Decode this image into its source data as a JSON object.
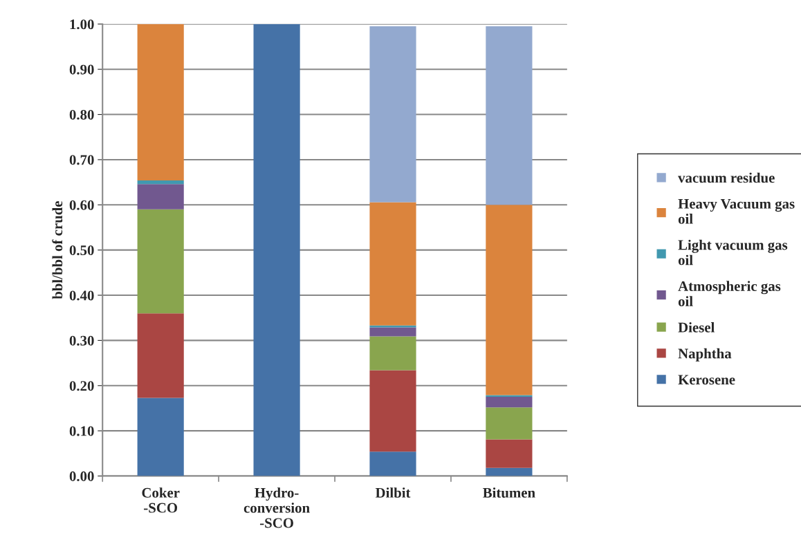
{
  "chart_data": {
    "type": "bar",
    "stacked": true,
    "ylabel": "bbl/bbl of crude",
    "categories": [
      "Coker\n-SCO",
      "Hydro-\nconversion\n-SCO",
      "Dilbit",
      "Bitumen"
    ],
    "series": [
      {
        "name": "Kerosene",
        "color": "#4572a7",
        "values": [
          0.173,
          1.0,
          0.054,
          0.018
        ]
      },
      {
        "name": "Naphtha",
        "color": "#aa4643",
        "values": [
          0.187,
          0,
          0.18,
          0.063
        ]
      },
      {
        "name": "Diesel",
        "color": "#89a54e",
        "values": [
          0.23,
          0,
          0.075,
          0.071
        ]
      },
      {
        "name": "Atmospheric gas oil",
        "color": "#71588f",
        "values": [
          0.056,
          0,
          0.02,
          0.023
        ]
      },
      {
        "name": "Light vacuum gas oil",
        "color": "#4198af",
        "values": [
          0.008,
          0,
          0.004,
          0.004
        ]
      },
      {
        "name": "Heavy Vacuum gas oil",
        "color": "#db843d",
        "values": [
          0.346,
          0,
          0.273,
          0.421
        ]
      },
      {
        "name": "vacuum residue",
        "color": "#93a9cf",
        "values": [
          0,
          0,
          0.389,
          0.395
        ]
      }
    ],
    "ylim": [
      0,
      1.0
    ],
    "yticks": [
      {
        "value": 0,
        "label": "0.00"
      },
      {
        "value": 0.1,
        "label": "0.10"
      },
      {
        "value": 0.2,
        "label": "0.20"
      },
      {
        "value": 0.3,
        "label": "0.30"
      },
      {
        "value": 0.4,
        "label": "0.40"
      },
      {
        "value": 0.5,
        "label": "0.50"
      },
      {
        "value": 0.6,
        "label": "0.60"
      },
      {
        "value": 0.7,
        "label": "0.70"
      },
      {
        "value": 0.8,
        "label": "0.80"
      },
      {
        "value": 0.9,
        "label": "0.90"
      },
      {
        "value": 1.0,
        "label": "1.00"
      }
    ],
    "grid": "y",
    "legend": "right"
  }
}
